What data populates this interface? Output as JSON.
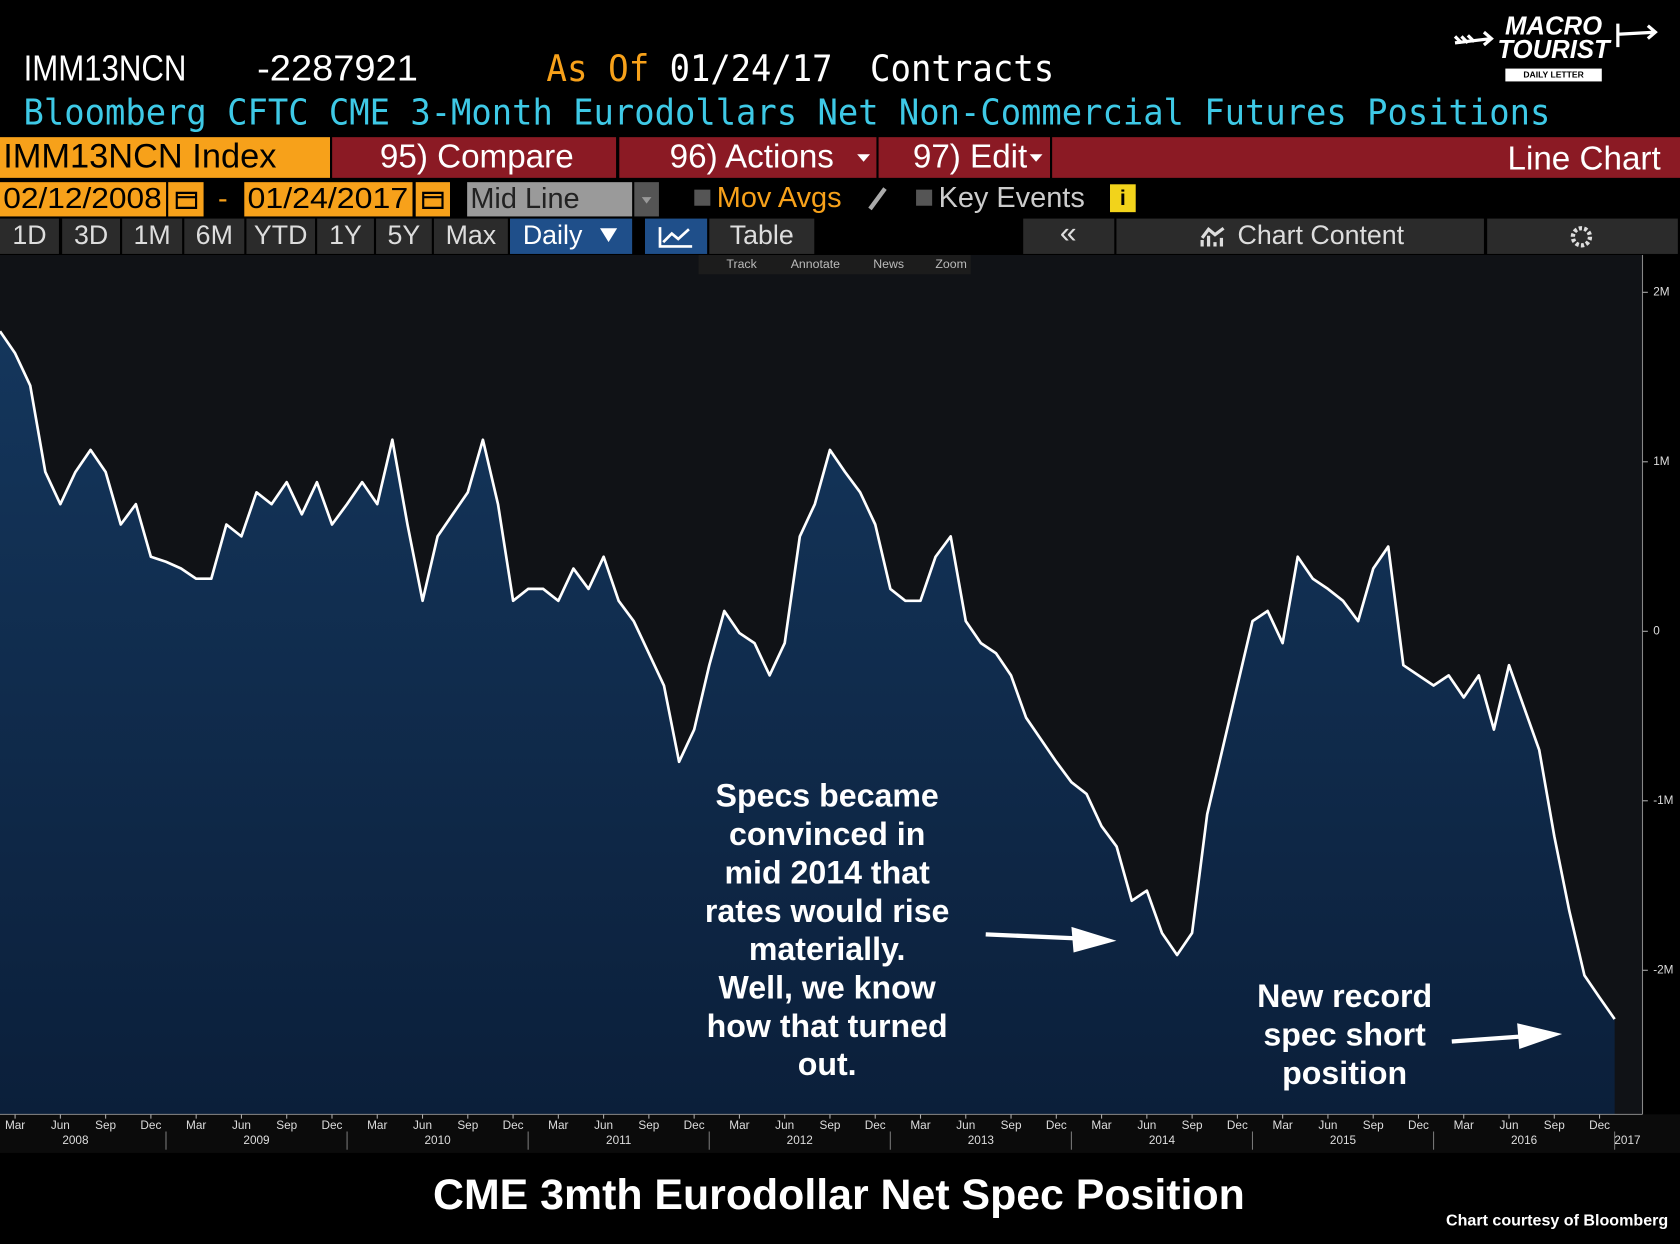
{
  "header": {
    "ticker": "IMM13NCN",
    "last_value": "-2287921",
    "as_of_label": "As Of",
    "as_of_date": "01/24/17",
    "units": "Contracts",
    "description": "Bloomberg CFTC CME 3-Month Eurodollars Net Non-Commercial Futures Positions"
  },
  "logo": {
    "line1": "MACRO",
    "line2": "TOURIST",
    "tagline": "DAILY LETTER"
  },
  "toolbar": {
    "security": "IMM13NCN Index",
    "compare": "95) Compare",
    "actions": "96) Actions",
    "edit": "97) Edit",
    "view": "Line Chart"
  },
  "range_bar": {
    "start_date": "02/12/2008",
    "separator": "-",
    "end_date": "01/24/2017",
    "price_mode": "Mid Line",
    "mov_avgs": "Mov Avgs",
    "key_events": "Key Events"
  },
  "period_bar": {
    "periods": [
      "1D",
      "3D",
      "1M",
      "6M",
      "YTD",
      "1Y",
      "5Y",
      "Max"
    ],
    "frequency": "Daily",
    "table": "Table",
    "chart_content": "Chart Content"
  },
  "chart_tools": [
    "Track",
    "Annotate",
    "News",
    "Zoom"
  ],
  "chart_data": {
    "type": "area",
    "title": "CME 3mth Eurodollar Net Spec Position",
    "x": [
      "2008-02",
      "2008-03",
      "2008-04",
      "2008-05",
      "2008-06",
      "2008-07",
      "2008-08",
      "2008-09",
      "2008-10",
      "2008-11",
      "2008-12",
      "2009-01",
      "2009-02",
      "2009-03",
      "2009-04",
      "2009-05",
      "2009-06",
      "2009-07",
      "2009-08",
      "2009-09",
      "2009-10",
      "2009-11",
      "2009-12",
      "2010-01",
      "2010-02",
      "2010-03",
      "2010-04",
      "2010-05",
      "2010-06",
      "2010-07",
      "2010-08",
      "2010-09",
      "2010-10",
      "2010-11",
      "2010-12",
      "2011-01",
      "2011-02",
      "2011-03",
      "2011-04",
      "2011-05",
      "2011-06",
      "2011-07",
      "2011-08",
      "2011-09",
      "2011-10",
      "2011-11",
      "2011-12",
      "2012-01",
      "2012-02",
      "2012-03",
      "2012-04",
      "2012-05",
      "2012-06",
      "2012-07",
      "2012-08",
      "2012-09",
      "2012-10",
      "2012-11",
      "2012-12",
      "2013-01",
      "2013-02",
      "2013-03",
      "2013-04",
      "2013-05",
      "2013-06",
      "2013-07",
      "2013-08",
      "2013-09",
      "2013-10",
      "2013-11",
      "2013-12",
      "2014-01",
      "2014-02",
      "2014-03",
      "2014-04",
      "2014-05",
      "2014-06",
      "2014-07",
      "2014-08",
      "2014-09",
      "2014-10",
      "2014-11",
      "2014-12",
      "2015-01",
      "2015-02",
      "2015-03",
      "2015-04",
      "2015-05",
      "2015-06",
      "2015-07",
      "2015-08",
      "2015-09",
      "2015-10",
      "2015-11",
      "2015-12",
      "2016-01",
      "2016-02",
      "2016-03",
      "2016-04",
      "2016-05",
      "2016-06",
      "2016-07",
      "2016-08",
      "2016-09",
      "2016-10",
      "2016-11",
      "2016-12",
      "2017-01"
    ],
    "values": [
      1770000,
      1640000,
      1450000,
      940000,
      750000,
      940000,
      1070000,
      940000,
      630000,
      750000,
      440000,
      410000,
      370000,
      310000,
      310000,
      630000,
      560000,
      820000,
      750000,
      880000,
      690000,
      880000,
      630000,
      750000,
      880000,
      750000,
      1130000,
      630000,
      180000,
      560000,
      690000,
      820000,
      1130000,
      750000,
      180000,
      250000,
      250000,
      180000,
      370000,
      250000,
      440000,
      180000,
      60000,
      -130000,
      -320000,
      -770000,
      -580000,
      -200000,
      120000,
      -10000,
      -70000,
      -260000,
      -70000,
      560000,
      750000,
      1070000,
      940000,
      820000,
      630000,
      250000,
      180000,
      180000,
      440000,
      560000,
      60000,
      -70000,
      -130000,
      -260000,
      -510000,
      -640000,
      -770000,
      -890000,
      -960000,
      -1150000,
      -1270000,
      -1590000,
      -1530000,
      -1780000,
      -1910000,
      -1780000,
      -1080000,
      -700000,
      -320000,
      60000,
      120000,
      -70000,
      440000,
      310000,
      250000,
      180000,
      60000,
      370000,
      500000,
      -200000,
      -260000,
      -320000,
      -260000,
      -390000,
      -260000,
      -580000,
      -200000,
      -450000,
      -700000,
      -1210000,
      -1650000,
      -2030000,
      -2160000,
      -2287921
    ],
    "line_color": "#ffffff",
    "fill_color": "#14365c",
    "xlim": [
      "2008-02",
      "2017-01"
    ],
    "xticks": [
      {
        "value": "2008-03",
        "label": "Mar"
      },
      {
        "value": "2008-06",
        "label": "Jun"
      },
      {
        "value": "2008-09",
        "label": "Sep"
      },
      {
        "value": "2008-12",
        "label": "Dec"
      },
      {
        "value": "2009-03",
        "label": "Mar"
      },
      {
        "value": "2009-06",
        "label": "Jun"
      },
      {
        "value": "2009-09",
        "label": "Sep"
      },
      {
        "value": "2009-12",
        "label": "Dec"
      },
      {
        "value": "2010-03",
        "label": "Mar"
      },
      {
        "value": "2010-06",
        "label": "Jun"
      },
      {
        "value": "2010-09",
        "label": "Sep"
      },
      {
        "value": "2010-12",
        "label": "Dec"
      },
      {
        "value": "2011-03",
        "label": "Mar"
      },
      {
        "value": "2011-06",
        "label": "Jun"
      },
      {
        "value": "2011-09",
        "label": "Sep"
      },
      {
        "value": "2011-12",
        "label": "Dec"
      },
      {
        "value": "2012-03",
        "label": "Mar"
      },
      {
        "value": "2012-06",
        "label": "Jun"
      },
      {
        "value": "2012-09",
        "label": "Sep"
      },
      {
        "value": "2012-12",
        "label": "Dec"
      },
      {
        "value": "2013-03",
        "label": "Mar"
      },
      {
        "value": "2013-06",
        "label": "Jun"
      },
      {
        "value": "2013-09",
        "label": "Sep"
      },
      {
        "value": "2013-12",
        "label": "Dec"
      },
      {
        "value": "2014-03",
        "label": "Mar"
      },
      {
        "value": "2014-06",
        "label": "Jun"
      },
      {
        "value": "2014-09",
        "label": "Sep"
      },
      {
        "value": "2014-12",
        "label": "Dec"
      },
      {
        "value": "2015-03",
        "label": "Mar"
      },
      {
        "value": "2015-06",
        "label": "Jun"
      },
      {
        "value": "2015-09",
        "label": "Sep"
      },
      {
        "value": "2015-12",
        "label": "Dec"
      },
      {
        "value": "2016-03",
        "label": "Mar"
      },
      {
        "value": "2016-06",
        "label": "Jun"
      },
      {
        "value": "2016-09",
        "label": "Sep"
      },
      {
        "value": "2016-12",
        "label": "Dec"
      }
    ],
    "year_labels": [
      2008,
      2009,
      2010,
      2011,
      2012,
      2013,
      2014,
      2015,
      2016,
      2017
    ],
    "ylim": [
      -2850000,
      2220000
    ],
    "yticks": [
      {
        "value": 2000000,
        "label": "2M"
      },
      {
        "value": 1000000,
        "label": "1M"
      },
      0,
      {
        "value": -1000000,
        "label": "-1M"
      },
      {
        "value": -2000000,
        "label": "-2M"
      }
    ],
    "y_axis_side": "right",
    "annotations": [
      {
        "lines": [
          "Specs became",
          "convinced in",
          "mid 2014 that",
          "rates would rise",
          "materially.",
          "Well, we know",
          "how that turned",
          "out."
        ]
      },
      {
        "lines": [
          "New record",
          "spec short",
          "position"
        ]
      }
    ]
  },
  "footer": {
    "credit": "Chart courtesy of Bloomberg"
  }
}
